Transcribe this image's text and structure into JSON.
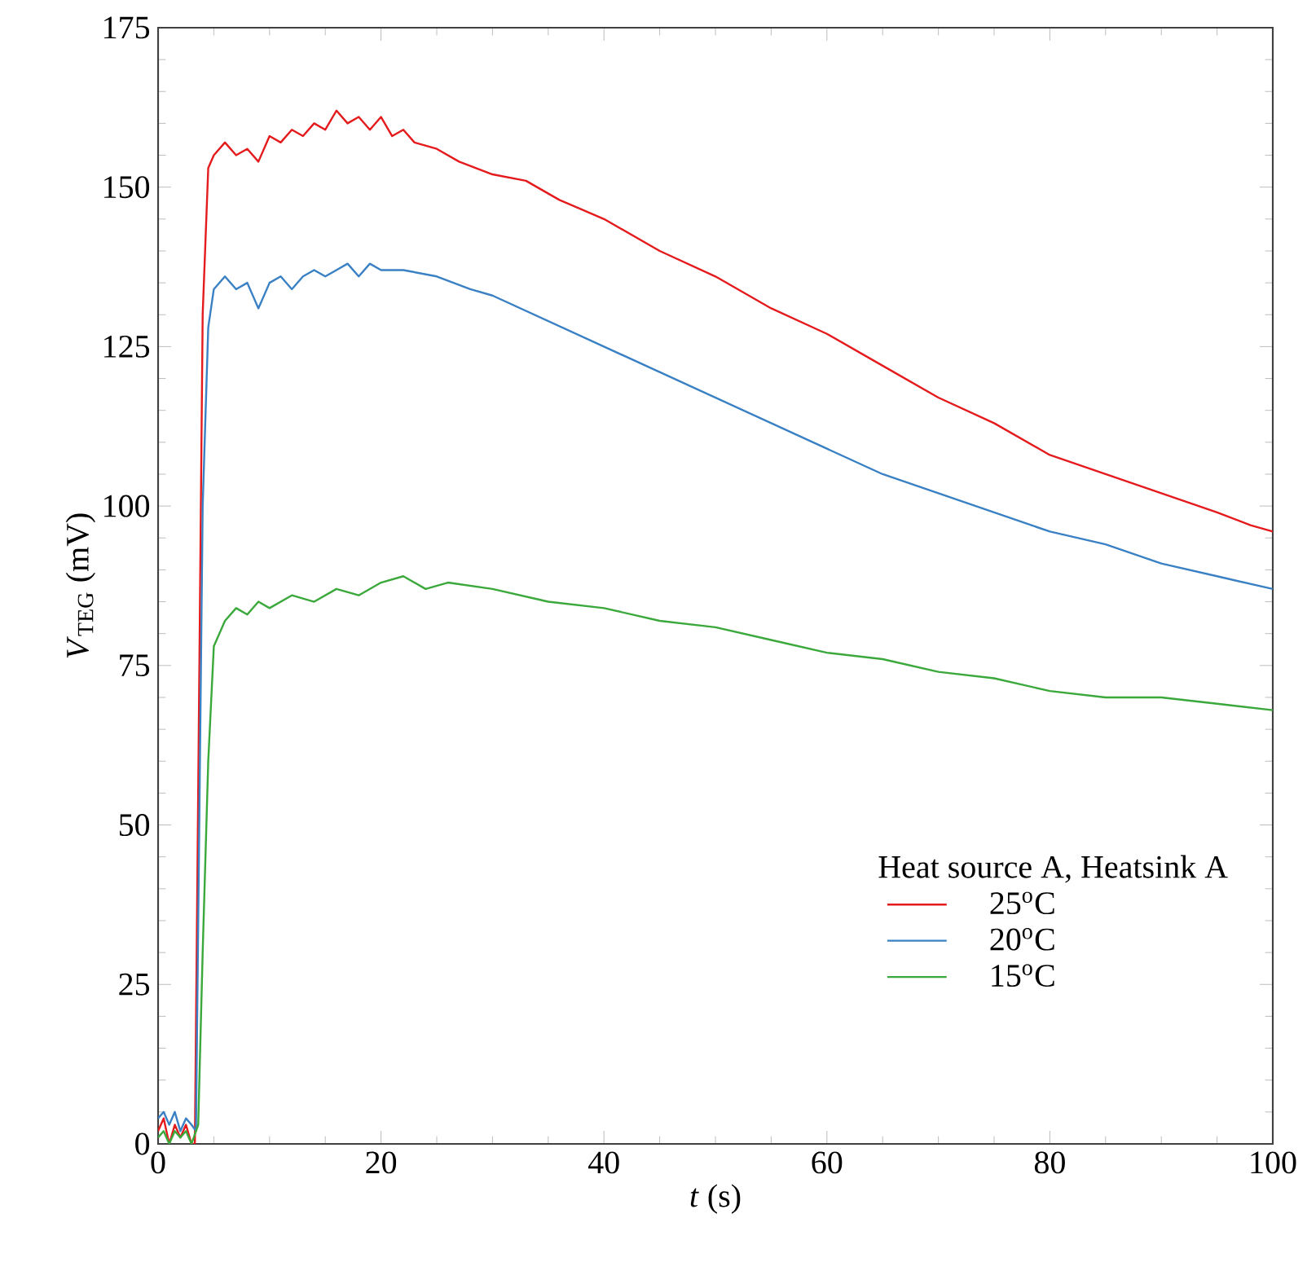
{
  "chart_data": {
    "type": "line",
    "xlabel": "*t* (s)",
    "ylabel": "*V*$_{TEG}$ (mV)",
    "legend_title": "Heat source A, Heatsink A",
    "legend": "bottom right",
    "grid": false,
    "marker": "none",
    "line_style": "solid",
    "xlim": [
      0,
      100
    ],
    "ylim": [
      0,
      175
    ],
    "xticks": [
      0,
      20,
      40,
      60,
      80,
      100
    ],
    "yticks": [
      0,
      25,
      50,
      75,
      100,
      125,
      150,
      175
    ],
    "series": [
      {
        "name": "25$^{o}$C",
        "color": "#e41a1c",
        "x": [
          0,
          0.5,
          1,
          1.5,
          2,
          2.5,
          3,
          3.3,
          4,
          4.5,
          5,
          6,
          7,
          8,
          9,
          10,
          11,
          12,
          13,
          14,
          15,
          16,
          17,
          18,
          19,
          20,
          21,
          22,
          23,
          25,
          27,
          30,
          33,
          36,
          40,
          45,
          50,
          55,
          60,
          65,
          70,
          75,
          80,
          85,
          90,
          95,
          98,
          100
        ],
        "values": [
          2,
          4,
          0,
          3,
          1,
          3,
          0,
          0,
          130,
          153,
          155,
          157,
          155,
          156,
          154,
          158,
          157,
          159,
          158,
          160,
          159,
          162,
          160,
          161,
          159,
          161,
          158,
          159,
          157,
          156,
          154,
          152,
          151,
          148,
          145,
          140,
          136,
          131,
          127,
          122,
          117,
          113,
          108,
          105,
          102,
          99,
          97,
          96
        ]
      },
      {
        "name": "20$^{o}$C",
        "color": "#3a80c4",
        "x": [
          0,
          0.5,
          1,
          1.5,
          2,
          2.5,
          3,
          3.4,
          4,
          4.5,
          5,
          6,
          7,
          8,
          9,
          10,
          11,
          12,
          13,
          14,
          15,
          16,
          17,
          18,
          19,
          20,
          22,
          25,
          28,
          30,
          35,
          40,
          45,
          50,
          55,
          60,
          65,
          70,
          75,
          80,
          85,
          90,
          95,
          100
        ],
        "values": [
          4,
          5,
          3,
          5,
          2,
          4,
          3,
          2,
          100,
          128,
          134,
          136,
          134,
          135,
          131,
          135,
          136,
          134,
          136,
          137,
          136,
          137,
          138,
          136,
          138,
          137,
          137,
          136,
          134,
          133,
          129,
          125,
          121,
          117,
          113,
          109,
          105,
          102,
          99,
          96,
          94,
          91,
          89,
          87
        ]
      },
      {
        "name": "15$^{o}$C",
        "color": "#3aa83a",
        "x": [
          0,
          0.5,
          1,
          1.5,
          2,
          2.5,
          3,
          3.6,
          4,
          4.5,
          5,
          6,
          7,
          8,
          9,
          10,
          12,
          14,
          16,
          18,
          20,
          22,
          24,
          26,
          30,
          35,
          40,
          45,
          50,
          55,
          60,
          65,
          70,
          75,
          80,
          85,
          90,
          95,
          100
        ],
        "values": [
          1,
          2,
          0,
          2,
          1,
          2,
          0,
          3,
          30,
          60,
          78,
          82,
          84,
          83,
          85,
          84,
          86,
          85,
          87,
          86,
          88,
          89,
          87,
          88,
          87,
          85,
          84,
          82,
          81,
          79,
          77,
          76,
          74,
          73,
          71,
          70,
          70,
          69,
          68
        ]
      }
    ]
  }
}
